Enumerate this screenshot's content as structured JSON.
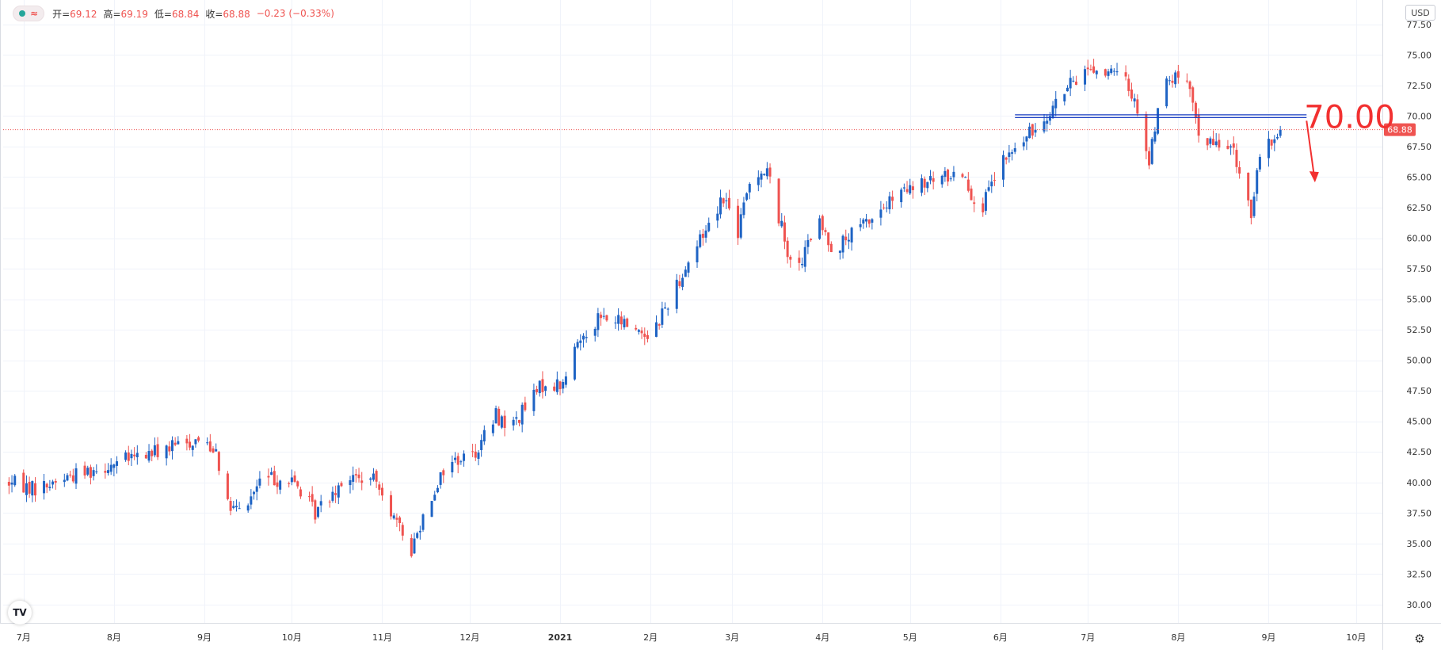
{
  "legend": {
    "open_label": "开=",
    "open": "69.12",
    "high_label": "高=",
    "high": "69.19",
    "low_label": "低=",
    "low": "68.84",
    "close_label": "收=",
    "close": "68.88",
    "change": "−0.23 (−0.33%)"
  },
  "currency": "USD",
  "annotation": {
    "text": "70.00",
    "level": 70.0
  },
  "last_price": {
    "text": "68.88",
    "value": 68.88
  },
  "colors": {
    "up": "#1e63c4",
    "down": "#ef5350",
    "annotation": "#f23030",
    "level_line": "#1a3fc2",
    "grid": "#f0f3fa",
    "axis_text": "#333333"
  },
  "icons": {
    "logo": "tradingview-logo-icon",
    "settings": "gear-icon",
    "legend_dot": "status-dot-icon",
    "legend_wave": "wave-icon"
  },
  "chart_data": {
    "type": "candlestick",
    "y_ticks": [
      "30.00",
      "32.50",
      "35.00",
      "37.50",
      "40.00",
      "42.50",
      "45.00",
      "47.50",
      "50.00",
      "52.50",
      "55.00",
      "57.50",
      "60.00",
      "62.50",
      "65.00",
      "67.50",
      "70.00",
      "72.50",
      "75.00",
      "77.50"
    ],
    "ylim": [
      28.5,
      79.5
    ],
    "x_ticks": [
      "7月",
      "8月",
      "9月",
      "10月",
      "11月",
      "12月",
      "2021",
      "2月",
      "3月",
      "4月",
      "5月",
      "6月",
      "7月",
      "8月",
      "9月",
      "10月"
    ],
    "x_tick_days": [
      0,
      31,
      62,
      92,
      123,
      153,
      184,
      215,
      243,
      274,
      304,
      335,
      365,
      396,
      427,
      457
    ],
    "xlim": [
      -7,
      466
    ],
    "anchors": [
      [
        -5,
        40.0
      ],
      [
        5,
        39.5
      ],
      [
        15,
        40.5
      ],
      [
        30,
        41.5
      ],
      [
        45,
        42.5
      ],
      [
        60,
        43.5
      ],
      [
        66,
        42.8
      ],
      [
        70,
        38.0
      ],
      [
        75,
        37.5
      ],
      [
        82,
        40.5
      ],
      [
        93,
        40.0
      ],
      [
        100,
        37.5
      ],
      [
        110,
        40.5
      ],
      [
        122,
        40.0
      ],
      [
        128,
        36.5
      ],
      [
        133,
        34.5
      ],
      [
        138,
        38.0
      ],
      [
        145,
        41.5
      ],
      [
        155,
        42.5
      ],
      [
        162,
        45.5
      ],
      [
        167,
        44.5
      ],
      [
        178,
        48.0
      ],
      [
        185,
        48.0
      ],
      [
        190,
        51.5
      ],
      [
        197,
        53.5
      ],
      [
        207,
        53.0
      ],
      [
        215,
        52.0
      ],
      [
        230,
        59.0
      ],
      [
        240,
        63.5
      ],
      [
        245,
        60.5
      ],
      [
        250,
        65.5
      ],
      [
        255,
        65.5
      ],
      [
        262,
        59.0
      ],
      [
        266,
        57.5
      ],
      [
        272,
        61.5
      ],
      [
        278,
        59.0
      ],
      [
        290,
        61.5
      ],
      [
        300,
        63.5
      ],
      [
        310,
        64.5
      ],
      [
        322,
        65.5
      ],
      [
        328,
        62.0
      ],
      [
        335,
        66.0
      ],
      [
        347,
        69.0
      ],
      [
        355,
        71.5
      ],
      [
        365,
        74.0
      ],
      [
        372,
        73.5
      ],
      [
        378,
        73.0
      ],
      [
        383,
        70.0
      ],
      [
        386,
        66.0
      ],
      [
        390,
        72.5
      ],
      [
        398,
        73.5
      ],
      [
        404,
        68.0
      ],
      [
        410,
        67.5
      ],
      [
        412,
        68.5
      ],
      [
        418,
        65.0
      ],
      [
        421,
        62.0
      ],
      [
        424,
        66.5
      ],
      [
        431,
        68.9
      ]
    ]
  }
}
